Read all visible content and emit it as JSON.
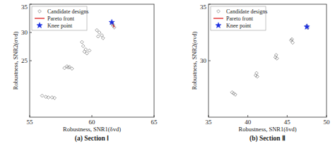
{
  "chart_data": [
    {
      "type": "scatter",
      "title": "(a) Section Ⅰ",
      "x_label": "Robustness, SNR1(δvd)",
      "y_label": "Robustness, SNR2(σvd)",
      "xlim": [
        55,
        65
      ],
      "xticks": [
        55,
        60,
        65
      ],
      "ylim": [
        15,
        35
      ],
      "yticks": [
        25,
        30,
        35
      ],
      "legend": "upper left",
      "series": [
        {
          "name": "Candidate designs",
          "type": "scatter",
          "marker": "diamond",
          "color": "#888888",
          "x": [
            56.0,
            56.3,
            56.5,
            56.8,
            57.0,
            57.8,
            58.0,
            58.2,
            58.4,
            58.1,
            59.2,
            59.3,
            59.5,
            59.4,
            59.8,
            59.6,
            60.4,
            60.6,
            60.8,
            60.5,
            60.9,
            61.6,
            61.7,
            61.8,
            61.7
          ],
          "values": [
            18.8,
            18.6,
            18.5,
            18.5,
            18.4,
            23.7,
            24.0,
            23.9,
            23.6,
            23.8,
            28.3,
            27.6,
            27.0,
            26.6,
            26.8,
            26.3,
            30.4,
            30.0,
            29.5,
            29.3,
            29.0,
            31.6,
            31.2,
            30.9,
            31.4
          ]
        },
        {
          "name": "Pareto front",
          "type": "line",
          "color": "#e02020",
          "x": [
            61.6,
            61.7,
            61.8
          ],
          "values": [
            32.0,
            31.4,
            30.9
          ]
        },
        {
          "name": "Knee point",
          "type": "scatter",
          "marker": "star",
          "color": "#1a2ee0",
          "x": [
            61.6
          ],
          "values": [
            31.8
          ]
        }
      ]
    },
    {
      "type": "scatter",
      "title": "(b) Section Ⅱ",
      "x_label": "Robustness, SNR1(δvd)",
      "y_label": "Robustness, SNR2(σvd)",
      "xlim": [
        35,
        50
      ],
      "xticks": [
        35,
        40,
        45,
        50
      ],
      "ylim": [
        25,
        35
      ],
      "yticks": [
        30,
        35
      ],
      "legend": "upper left",
      "series": [
        {
          "name": "Candidate designs",
          "type": "scatter",
          "marker": "diamond",
          "color": "#888888",
          "x": [
            38.0,
            38.2,
            38.4,
            41.0,
            41.1,
            41.2,
            43.5,
            43.6,
            43.7,
            45.5,
            45.6,
            45.7,
            47.5,
            47.6
          ],
          "values": [
            27.2,
            27.1,
            27.0,
            28.7,
            28.9,
            28.6,
            30.3,
            30.5,
            30.2,
            31.8,
            31.9,
            31.6,
            33.1,
            32.9
          ]
        },
        {
          "name": "Pareto front",
          "type": "line",
          "color": "#e02020",
          "x": [
            47.4,
            47.6
          ],
          "values": [
            33.0,
            33.05
          ]
        },
        {
          "name": "Knee point",
          "type": "scatter",
          "marker": "star",
          "color": "#1a2ee0",
          "x": [
            47.5
          ],
          "values": [
            33.0
          ]
        }
      ]
    }
  ]
}
